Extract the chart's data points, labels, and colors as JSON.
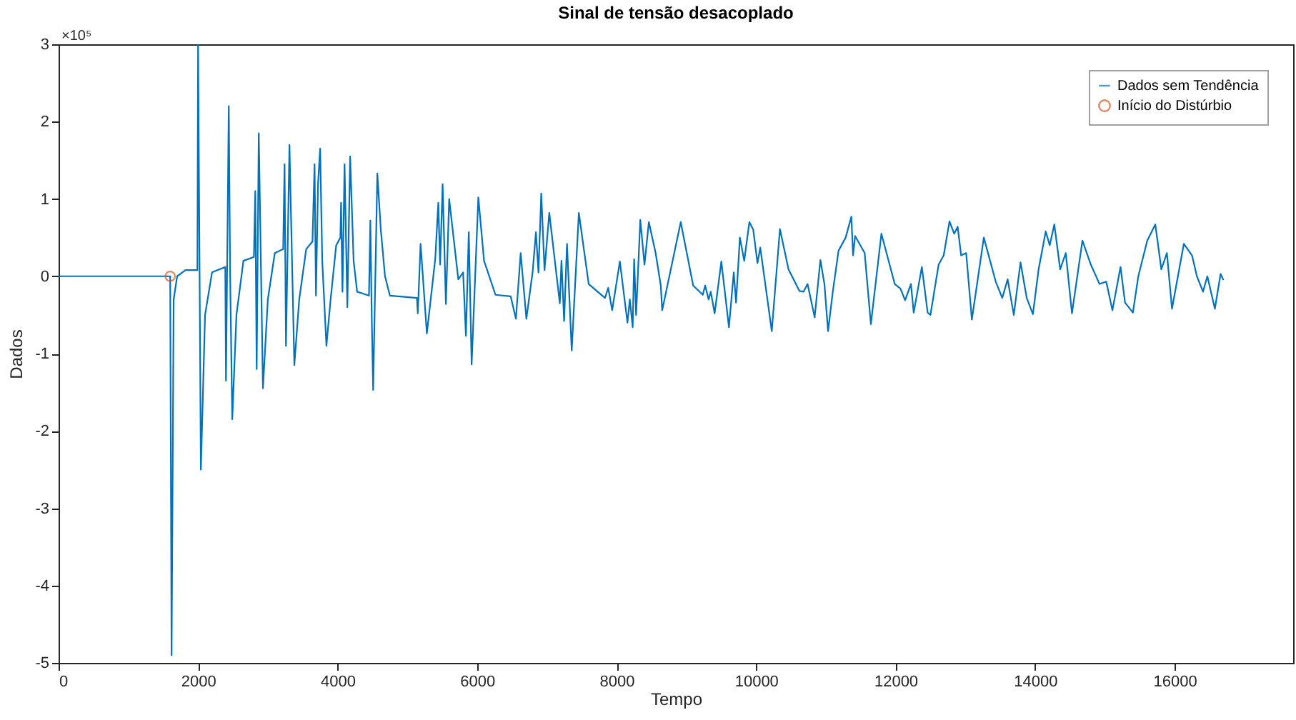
{
  "chart_data": {
    "type": "line",
    "title": "Sinal de tensão desacoplado",
    "xlabel": "Tempo",
    "ylabel": "Dados",
    "annotations": [
      "×10⁵"
    ],
    "xlim": [
      0,
      17700
    ],
    "xticks": [
      0,
      2000,
      4000,
      6000,
      8000,
      10000,
      12000,
      14000,
      16000
    ],
    "ylim": [
      -5,
      3
    ],
    "yticks": [
      -5,
      -4,
      -3,
      -2,
      -1,
      0,
      1,
      2,
      3
    ],
    "grid": false,
    "legend": "top right",
    "line_style": "solid",
    "series": [
      {
        "name": "Dados sem Tendência",
        "color": "#0072bd",
        "x": [
          0,
          1560,
          1600,
          1620,
          1650,
          1700,
          1820,
          1990,
          2000,
          2040,
          2100,
          2200,
          2390,
          2400,
          2440,
          2460,
          2490,
          2550,
          2650,
          2800,
          2820,
          2840,
          2870,
          2930,
          3000,
          3100,
          3220,
          3240,
          3260,
          3310,
          3380,
          3450,
          3550,
          3640,
          3670,
          3690,
          3720,
          3750,
          3780,
          3840,
          3900,
          3980,
          4040,
          4050,
          4070,
          4100,
          4140,
          4180,
          4230,
          4280,
          4450,
          4470,
          4490,
          4510,
          4570,
          4620,
          4680,
          4750,
          5137,
          5150,
          5190,
          5280,
          5400,
          5444,
          5470,
          5506,
          5553,
          5600,
          5731,
          5800,
          5840,
          5881,
          5922,
          6018,
          6100,
          6264,
          6482,
          6557,
          6625,
          6707,
          6797,
          6844,
          6880,
          6920,
          6967,
          7035,
          7186,
          7210,
          7248,
          7289,
          7357,
          7459,
          7600,
          7834,
          7880,
          7937,
          8047,
          8156,
          8190,
          8231,
          8252,
          8280,
          8340,
          8400,
          8463,
          8560,
          8634,
          8654,
          8920,
          9098,
          9236,
          9270,
          9320,
          9350,
          9406,
          9502,
          9611,
          9680,
          9713,
          9768,
          9830,
          9904,
          9960,
          10020,
          10060,
          10225,
          10342,
          10465,
          10621,
          10680,
          10738,
          10840,
          10922,
          10980,
          11032,
          11100,
          11182,
          11284,
          11366,
          11390,
          11420,
          11557,
          11646,
          11797,
          11988,
          12070,
          12137,
          12220,
          12260,
          12377,
          12460,
          12500,
          12617,
          12690,
          12773,
          12840,
          12890,
          12940,
          13012,
          13094,
          13265,
          13436,
          13530,
          13607,
          13695,
          13791,
          13880,
          13969,
          14051,
          14153,
          14210,
          14276,
          14360,
          14440,
          14529,
          14679,
          14800,
          14924,
          15020,
          15109,
          15225,
          15290,
          15403,
          15480,
          15608,
          15724,
          15810,
          15890,
          15963,
          16133,
          16250,
          16320,
          16408,
          16470,
          16578,
          16660,
          16701
        ],
        "values": [
          0,
          0,
          0,
          -4.9,
          -0.3,
          0,
          0.08,
          0.08,
          3,
          -2.5,
          -0.5,
          0.05,
          0.12,
          -1.35,
          2.2,
          0,
          -1.85,
          -0.5,
          0.2,
          0.25,
          1.1,
          -1.2,
          1.85,
          -1.45,
          -0.3,
          0.3,
          0.35,
          1.45,
          -0.9,
          1.7,
          -1.15,
          -0.3,
          0.35,
          0.45,
          1.45,
          -0.25,
          1.2,
          1.65,
          0.2,
          -0.9,
          -0.3,
          0.4,
          0.5,
          0.95,
          -0.2,
          1.45,
          -0.4,
          1.55,
          0.2,
          -0.2,
          -0.25,
          0.72,
          -0.55,
          -1.47,
          1.33,
          0.6,
          0,
          -0.25,
          -0.28,
          -0.48,
          0.42,
          -0.74,
          0.22,
          0.95,
          0.15,
          1.19,
          -0.36,
          1,
          -0.04,
          0.05,
          -0.77,
          0.57,
          -1.14,
          1.02,
          0.2,
          -0.24,
          -0.26,
          -0.55,
          0.3,
          -0.55,
          0.06,
          0.57,
          0.05,
          1.07,
          0.08,
          0.82,
          -0.35,
          0.2,
          -0.58,
          0.42,
          -0.96,
          0.82,
          -0.1,
          -0.28,
          -0.15,
          -0.44,
          0.19,
          -0.6,
          -0.3,
          -0.66,
          0.22,
          -0.5,
          0.73,
          0.15,
          0.7,
          0.3,
          -0.12,
          -0.44,
          0.7,
          -0.12,
          -0.24,
          -0.12,
          -0.3,
          -0.2,
          -0.48,
          0.19,
          -0.66,
          0.05,
          -0.34,
          0.5,
          0.2,
          0.7,
          0.6,
          0.17,
          0.37,
          -0.71,
          0.61,
          0.09,
          -0.19,
          -0.2,
          -0.1,
          -0.53,
          0.21,
          -0.1,
          -0.71,
          -0.2,
          0.33,
          0.5,
          0.77,
          0.27,
          0.52,
          0.3,
          -0.62,
          0.55,
          -0.1,
          -0.16,
          -0.31,
          -0.1,
          -0.47,
          0.12,
          -0.47,
          -0.5,
          0.15,
          0.27,
          0.71,
          0.55,
          0.64,
          0.27,
          0.3,
          -0.56,
          0.5,
          -0.07,
          -0.28,
          -0.04,
          -0.5,
          0.18,
          -0.28,
          -0.49,
          0.09,
          0.58,
          0.4,
          0.67,
          0.09,
          0.3,
          -0.48,
          0.46,
          0.15,
          -0.1,
          -0.07,
          -0.44,
          0.12,
          -0.34,
          -0.47,
          0,
          0.46,
          0.67,
          0.09,
          0.3,
          -0.42,
          0.42,
          0.27,
          0,
          -0.2,
          0,
          -0.42,
          0.03,
          -0.05
        ]
      },
      {
        "name": "Início do Distúrbio",
        "type": "scatter",
        "color": "#d95319",
        "marker": "circle",
        "x": [
          1600
        ],
        "values": [
          0
        ]
      }
    ]
  }
}
